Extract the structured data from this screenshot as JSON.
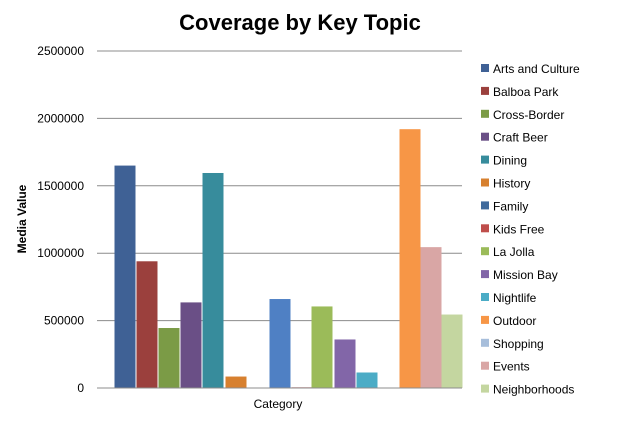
{
  "chart_data": {
    "type": "bar",
    "title": "Coverage by Key Topic",
    "xlabel": "Category",
    "ylabel": "Media Value",
    "ylim": [
      0,
      2500000
    ],
    "yticks": [
      "0",
      "500000",
      "1000000",
      "1500000",
      "2000000",
      "2500000"
    ],
    "grid": true,
    "legend_position": "right",
    "series": [
      {
        "name": "Arts and Culture",
        "value": 1650000,
        "color": "#3f6195"
      },
      {
        "name": "Balboa Park",
        "value": 940000,
        "color": "#9b403d"
      },
      {
        "name": "Cross-Border",
        "value": 445000,
        "color": "#7b9b46"
      },
      {
        "name": "Craft Beer",
        "value": 635000,
        "color": "#6a4f86"
      },
      {
        "name": "Dining",
        "value": 1595000,
        "color": "#378c9c"
      },
      {
        "name": "History",
        "value": 85000,
        "color": "#d7802f"
      },
      {
        "name": "Family",
        "value": 0,
        "color": "#4a7cbf"
      },
      {
        "name": "Kids Free",
        "value": 660000,
        "color": "#4f80c4"
      },
      {
        "name": "La Jolla",
        "value": 5000,
        "color": "#bf4e4b"
      },
      {
        "name": "Mission Bay",
        "value": 605000,
        "color": "#9bbb59"
      },
      {
        "name": "Nightlife",
        "value": 360000,
        "color": "#8266a8"
      },
      {
        "name": "Outdoor",
        "value": 115000,
        "color": "#4bacc6"
      },
      {
        "name": "Shopping",
        "value": 1920000,
        "color": "#f79646"
      },
      {
        "name": "Events",
        "value": 1045000,
        "color": "#d9a6a5"
      },
      {
        "name": "Neighborhoods",
        "value": 545000,
        "color": "#c4d6a0"
      }
    ],
    "legend_series": [
      {
        "name": "Arts and Culture",
        "color": "#3f6195"
      },
      {
        "name": "Balboa Park",
        "color": "#9b403d"
      },
      {
        "name": "Cross-Border",
        "color": "#7b9b46"
      },
      {
        "name": "Craft Beer",
        "color": "#6a4f86"
      },
      {
        "name": "Dining",
        "color": "#378c9c"
      },
      {
        "name": "History",
        "color": "#d7802f"
      },
      {
        "name": "Family",
        "color": "#3f6a9c"
      },
      {
        "name": "Kids Free",
        "color": "#bf4e4b"
      },
      {
        "name": "La Jolla",
        "color": "#9bbb59"
      },
      {
        "name": "Mission Bay",
        "color": "#8266a8"
      },
      {
        "name": "Nightlife",
        "color": "#4bacc6"
      },
      {
        "name": "Outdoor",
        "color": "#f79646"
      },
      {
        "name": "Shopping",
        "color": "#a7bedb"
      },
      {
        "name": "Events",
        "color": "#d9a6a5"
      },
      {
        "name": "Neighborhoods",
        "color": "#c4d6a0"
      }
    ]
  }
}
